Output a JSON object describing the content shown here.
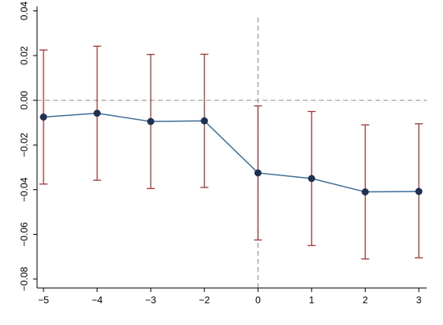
{
  "chart_data": {
    "type": "line",
    "title": "",
    "xlabel": "",
    "ylabel": "",
    "x_ticks": [
      "−5",
      "−4",
      "−3",
      "−2",
      "0",
      "1",
      "2",
      "3"
    ],
    "y_ticks": [
      "0.04",
      "0.02",
      "0.00",
      "−0.02",
      "−0.04",
      "−0.06",
      "−0.08"
    ],
    "y_tick_values": [
      0.04,
      0.02,
      0.0,
      -0.02,
      -0.04,
      -0.06,
      -0.08
    ],
    "ylim": [
      -0.084,
      0.042
    ],
    "series": [
      {
        "estimates": [
          -0.0075,
          -0.0058,
          -0.0095,
          -0.0092,
          -0.0325,
          -0.035,
          -0.041,
          -0.0408
        ],
        "ci_lower": [
          -0.0375,
          -0.0358,
          -0.0395,
          -0.039,
          -0.0625,
          -0.065,
          -0.071,
          -0.0705
        ],
        "ci_upper": [
          0.0225,
          0.0242,
          0.0205,
          0.0206,
          -0.0025,
          -0.005,
          -0.011,
          -0.0105
        ]
      }
    ],
    "reference_lines": {
      "horizontal_at": 0.0,
      "vertical_at_category": "0"
    },
    "grid": false,
    "legend": "none",
    "colors": {
      "line": "#3e6e96",
      "marker": "#1f3050",
      "error_bar": "#9e3a3a",
      "reference": "#999999",
      "axis": "#000000"
    }
  }
}
